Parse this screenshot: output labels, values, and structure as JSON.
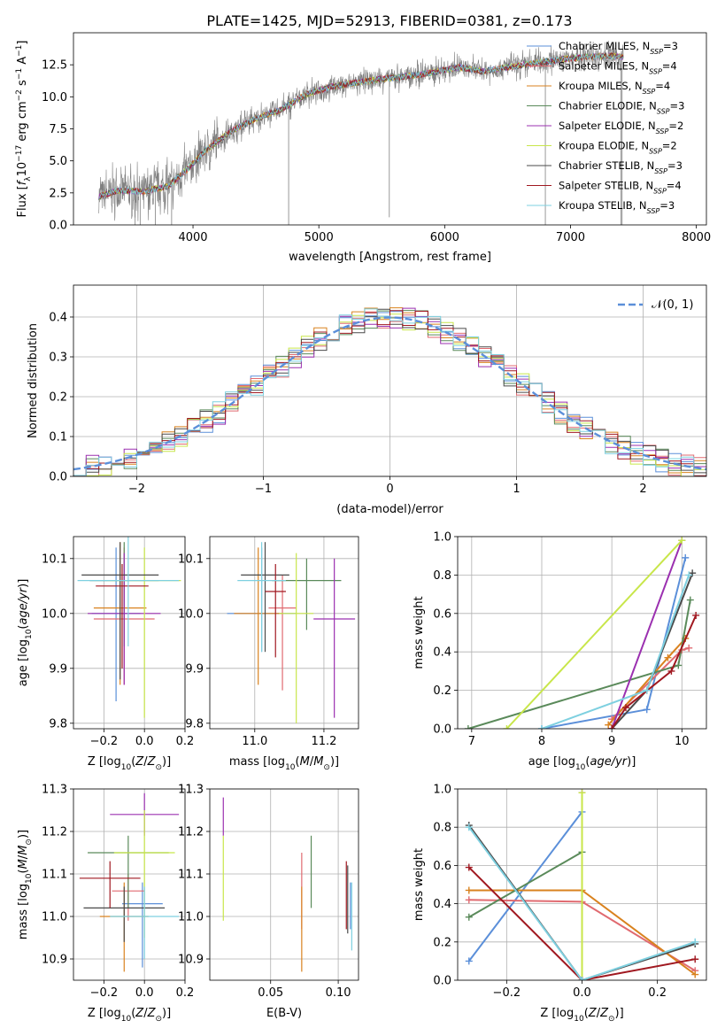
{
  "figure_title": "PLATE=1425, MJD=52913, FIBERID=0381, z=0.173",
  "colors": {
    "chabrier_miles": "#5b8fd9",
    "salpeter_miles": "#e06a70",
    "kroupa_miles": "#d9821f",
    "chabrier_elodie": "#5a8a5a",
    "salpeter_elodie": "#9b30b0",
    "kroupa_elodie": "#c8e64a",
    "chabrier_stelib": "#4a4a4a",
    "salpeter_stelib": "#a01820",
    "kroupa_stelib": "#7ed0e0",
    "data": "#808080",
    "normal": "#5b8fd9"
  },
  "chart_data": [
    {
      "id": "spectrum",
      "type": "line",
      "title": "PLATE=1425, MJD=52913, FIBERID=0381, z=0.173",
      "xlabel": "wavelength [Angstrom, rest frame]",
      "ylabel": "Flux [f_λ 10^-17 erg cm^-2 s^-1 A^-1]",
      "xlim": [
        3050,
        8080
      ],
      "ylim": [
        0,
        15
      ],
      "xticks": [
        4000,
        5000,
        6000,
        7000,
        8000
      ],
      "yticks": [
        0.0,
        2.5,
        5.0,
        7.5,
        10.0,
        12.5
      ],
      "legend": [
        "Chabrier MILES, N_SSP=3",
        "Salpeter MILES, N_SSP=4",
        "Kroupa MILES, N_SSP=4",
        "Chabrier ELODIE, N_SSP=3",
        "Salpeter ELODIE, N_SSP=2",
        "Kroupa ELODIE, N_SSP=2",
        "Chabrier STELIB, N_SSP=3",
        "Salpeter STELIB, N_SSP=4",
        "Kroupa STELIB, N_SSP=3"
      ],
      "legend_loc": "right",
      "continuum": [
        [
          3250,
          2.2
        ],
        [
          3400,
          2.7
        ],
        [
          3600,
          2.6
        ],
        [
          3800,
          3.0
        ],
        [
          3950,
          4.3
        ],
        [
          4100,
          5.8
        ],
        [
          4300,
          7.3
        ],
        [
          4500,
          8.3
        ],
        [
          4700,
          9.0
        ],
        [
          4900,
          10.2
        ],
        [
          5100,
          10.8
        ],
        [
          5300,
          11.1
        ],
        [
          5500,
          11.4
        ],
        [
          5700,
          11.6
        ],
        [
          5900,
          11.9
        ],
        [
          6100,
          12.3
        ],
        [
          6300,
          12.0
        ],
        [
          6500,
          12.3
        ],
        [
          6700,
          12.6
        ],
        [
          6900,
          12.9
        ],
        [
          7100,
          13.1
        ],
        [
          7300,
          13.2
        ],
        [
          7420,
          13.1
        ]
      ],
      "spikes": [
        [
          3540,
          -1
        ],
        [
          3580,
          -1
        ],
        [
          3700,
          -1
        ],
        [
          3830,
          -1
        ],
        [
          4760,
          -1
        ],
        [
          5560,
          0.6
        ],
        [
          6800,
          -1
        ],
        [
          7400,
          -1
        ],
        [
          7410,
          -1
        ]
      ]
    },
    {
      "id": "residuals",
      "type": "bar",
      "xlabel": "(data-model)/error",
      "ylabel": "Normed distribution",
      "xlim": [
        -2.5,
        2.5
      ],
      "ylim": [
        0,
        0.48
      ],
      "xticks": [
        -2,
        -1,
        0,
        1,
        2
      ],
      "yticks": [
        0.0,
        0.1,
        0.2,
        0.3,
        0.4
      ],
      "legend": [
        "𝒩(0, 1)"
      ],
      "legend_loc": "top-right",
      "bin_width": 0.1
    },
    {
      "id": "age-vs-z",
      "type": "scatter",
      "xlabel": "Z [log10(Z/Z_sun)]",
      "ylabel": "age [log10(age/yr)]",
      "xlim": [
        -0.35,
        0.2
      ],
      "ylim": [
        9.79,
        10.14
      ],
      "xticks": [
        -0.2,
        0.0,
        0.2
      ],
      "yticks": [
        9.8,
        9.9,
        10.0,
        10.1
      ],
      "points": [
        {
          "model": "chabrier_miles",
          "x": -0.14,
          "y": 10.0,
          "x_err": 0.12,
          "y_err_low": 0.16,
          "y_err_high": 0.12
        },
        {
          "model": "salpeter_miles",
          "x": -0.1,
          "y": 9.99,
          "x_err": 0.15,
          "y_err_low": 0.12,
          "y_err_high": 0.13
        },
        {
          "model": "kroupa_miles",
          "x": -0.12,
          "y": 10.01,
          "x_err": 0.13,
          "y_err_low": 0.14,
          "y_err_high": 0.12
        },
        {
          "model": "chabrier_elodie",
          "x": -0.1,
          "y": 10.06,
          "x_err": 0.17,
          "y_err_low": 0.12,
          "y_err_high": 0.07
        },
        {
          "model": "salpeter_elodie",
          "x": -0.1,
          "y": 10.0,
          "x_err": 0.18,
          "y_err_low": 0.13,
          "y_err_high": 0.11
        },
        {
          "model": "kroupa_elodie",
          "x": 0.0,
          "y": 10.06,
          "x_err": 0.18,
          "y_err_low": 0.25,
          "y_err_high": 0.06
        },
        {
          "model": "chabrier_stelib",
          "x": -0.12,
          "y": 10.07,
          "x_err": 0.19,
          "y_err_low": 0.19,
          "y_err_high": 0.06
        },
        {
          "model": "salpeter_stelib",
          "x": -0.11,
          "y": 10.05,
          "x_err": 0.13,
          "y_err_low": 0.15,
          "y_err_high": 0.04
        },
        {
          "model": "kroupa_stelib",
          "x": -0.08,
          "y": 10.06,
          "x_err": 0.25,
          "y_err_low": 0.12,
          "y_err_high": 0.08
        }
      ]
    },
    {
      "id": "age-vs-mass",
      "type": "scatter",
      "xlabel": "mass [log10(M/M_sun)]",
      "ylabel": "",
      "xlim": [
        10.87,
        11.3
      ],
      "ylim": [
        9.79,
        10.14
      ],
      "xticks": [
        11.0,
        11.2
      ],
      "yticks": [
        9.8,
        9.9,
        10.0,
        10.1
      ],
      "points": [
        {
          "model": "chabrier_miles",
          "x": 11.02,
          "y": 10.0,
          "x_err": 0.1,
          "y_err_low": 0.07,
          "y_err_high": 0.12
        },
        {
          "model": "salpeter_miles",
          "x": 11.08,
          "y": 10.01,
          "x_err": 0.04,
          "y_err_low": 0.15,
          "y_err_high": 0.06
        },
        {
          "model": "kroupa_miles",
          "x": 11.01,
          "y": 10.0,
          "x_err": 0.07,
          "y_err_low": 0.13,
          "y_err_high": 0.12
        },
        {
          "model": "chabrier_elodie",
          "x": 11.15,
          "y": 10.06,
          "x_err": 0.1,
          "y_err_low": 0.09,
          "y_err_high": 0.04
        },
        {
          "model": "salpeter_elodie",
          "x": 11.23,
          "y": 9.99,
          "x_err": 0.06,
          "y_err_low": 0.18,
          "y_err_high": 0.11
        },
        {
          "model": "kroupa_elodie",
          "x": 11.12,
          "y": 10.0,
          "x_err": 0.05,
          "y_err_low": 0.2,
          "y_err_high": 0.11
        },
        {
          "model": "chabrier_stelib",
          "x": 11.03,
          "y": 10.07,
          "x_err": 0.07,
          "y_err_low": 0.14,
          "y_err_high": 0.06
        },
        {
          "model": "salpeter_stelib",
          "x": 11.06,
          "y": 10.04,
          "x_err": 0.03,
          "y_err_low": 0.12,
          "y_err_high": 0.05
        },
        {
          "model": "kroupa_stelib",
          "x": 11.02,
          "y": 10.06,
          "x_err": 0.07,
          "y_err_low": 0.13,
          "y_err_high": 0.07
        }
      ]
    },
    {
      "id": "weight-vs-age",
      "type": "line",
      "xlabel": "age [log10(age/yr)]",
      "ylabel": "mass weight",
      "xlim": [
        6.8,
        10.35
      ],
      "ylim": [
        0,
        1
      ],
      "xticks": [
        7,
        8,
        9,
        10
      ],
      "yticks": [
        0.0,
        0.2,
        0.4,
        0.6,
        0.8,
        1.0
      ],
      "series": [
        {
          "model": "chabrier_miles",
          "x": [
            8.0,
            9.5,
            10.05
          ],
          "y": [
            0.0,
            0.1,
            0.89
          ]
        },
        {
          "model": "salpeter_miles",
          "x": [
            9.0,
            10.0,
            10.1
          ],
          "y": [
            0.05,
            0.41,
            0.42
          ]
        },
        {
          "model": "kroupa_miles",
          "x": [
            8.95,
            9.8,
            10.05
          ],
          "y": [
            0.02,
            0.37,
            0.47
          ]
        },
        {
          "model": "chabrier_elodie",
          "x": [
            6.95,
            9.95,
            10.12
          ],
          "y": [
            0.0,
            0.33,
            0.67
          ]
        },
        {
          "model": "salpeter_elodie",
          "x": [
            9.0,
            10.0
          ],
          "y": [
            0.0,
            0.98
          ]
        },
        {
          "model": "kroupa_elodie",
          "x": [
            7.5,
            10.0
          ],
          "y": [
            0.0,
            0.98
          ]
        },
        {
          "model": "chabrier_stelib",
          "x": [
            9.0,
            9.5,
            10.15
          ],
          "y": [
            0.0,
            0.2,
            0.81
          ]
        },
        {
          "model": "salpeter_stelib",
          "x": [
            9.0,
            9.2,
            9.85,
            10.2
          ],
          "y": [
            0.0,
            0.11,
            0.3,
            0.59
          ]
        },
        {
          "model": "kroupa_stelib",
          "x": [
            8.0,
            9.5,
            10.1
          ],
          "y": [
            0.0,
            0.2,
            0.8
          ]
        }
      ]
    },
    {
      "id": "mass-vs-z",
      "type": "scatter",
      "xlabel": "Z [log10(Z/Z_sun)]",
      "ylabel": "mass [log10(M/M_sun)]",
      "xlim": [
        -0.35,
        0.2
      ],
      "ylim": [
        10.85,
        11.3
      ],
      "xticks": [
        -0.2,
        0.0,
        0.2
      ],
      "yticks": [
        10.9,
        11.0,
        11.1,
        11.2,
        11.3
      ],
      "points": [
        {
          "model": "chabrier_miles",
          "x": -0.01,
          "y": 11.03,
          "x_err": 0.1,
          "y_err_low": 0.15,
          "y_err_high": 0.05
        },
        {
          "model": "salpeter_miles",
          "x": -0.08,
          "y": 11.06,
          "x_err": 0.08,
          "y_err_low": 0.07,
          "y_err_high": 0.04
        },
        {
          "model": "kroupa_miles",
          "x": -0.1,
          "y": 11.0,
          "x_err": 0.12,
          "y_err_low": 0.13,
          "y_err_high": 0.08
        },
        {
          "model": "chabrier_elodie",
          "x": -0.08,
          "y": 11.15,
          "x_err": 0.2,
          "y_err_low": 0.13,
          "y_err_high": 0.04
        },
        {
          "model": "salpeter_elodie",
          "x": 0.0,
          "y": 11.24,
          "x_err": 0.17,
          "y_err_low": 0.05,
          "y_err_high": 0.05
        },
        {
          "model": "kroupa_elodie",
          "x": 0.0,
          "y": 11.15,
          "x_err": 0.15,
          "y_err_low": 0.2,
          "y_err_high": 0.1
        },
        {
          "model": "chabrier_stelib",
          "x": -0.1,
          "y": 11.02,
          "x_err": 0.2,
          "y_err_low": 0.08,
          "y_err_high": 0.05
        },
        {
          "model": "salpeter_stelib",
          "x": -0.17,
          "y": 11.09,
          "x_err": 0.15,
          "y_err_low": 0.07,
          "y_err_high": 0.04
        },
        {
          "model": "kroupa_stelib",
          "x": 0.0,
          "y": 11.0,
          "x_err": 0.17,
          "y_err_low": 0.1,
          "y_err_high": 0.07
        }
      ]
    },
    {
      "id": "mass-vs-ebv",
      "type": "scatter",
      "xlabel": "E(B-V)",
      "ylabel": "",
      "xlim": [
        0.005,
        0.115
      ],
      "ylim": [
        10.85,
        11.3
      ],
      "xticks": [
        0.05,
        0.1
      ],
      "yticks": [
        10.9,
        11.0,
        11.1,
        11.2,
        11.3
      ],
      "points": [
        {
          "model": "chabrier_miles",
          "x": 0.109,
          "y": 11.0,
          "y_err_low": 0.03,
          "y_err_high": 0.08
        },
        {
          "model": "salpeter_miles",
          "x": 0.073,
          "y": 11.04,
          "y_err_low": 0.07,
          "y_err_high": 0.11
        },
        {
          "model": "kroupa_miles",
          "x": 0.073,
          "y": 10.97,
          "y_err_low": 0.1,
          "y_err_high": 0.1
        },
        {
          "model": "chabrier_elodie",
          "x": 0.08,
          "y": 11.1,
          "y_err_low": 0.08,
          "y_err_high": 0.09
        },
        {
          "model": "salpeter_elodie",
          "x": 0.015,
          "y": 11.24,
          "y_err_low": 0.05,
          "y_err_high": 0.04
        },
        {
          "model": "kroupa_elodie",
          "x": 0.015,
          "y": 11.1,
          "y_err_low": 0.11,
          "y_err_high": 0.09
        },
        {
          "model": "chabrier_stelib",
          "x": 0.107,
          "y": 11.04,
          "y_err_low": 0.08,
          "y_err_high": 0.08
        },
        {
          "model": "salpeter_stelib",
          "x": 0.106,
          "y": 11.07,
          "y_err_low": 0.1,
          "y_err_high": 0.06
        },
        {
          "model": "kroupa_stelib",
          "x": 0.11,
          "y": 11.02,
          "y_err_low": 0.1,
          "y_err_high": 0.06
        }
      ]
    },
    {
      "id": "weight-vs-z",
      "type": "line",
      "xlabel": "Z [log10(Z/Z_sun)]",
      "ylabel": "mass weight",
      "xlim": [
        -0.33,
        0.33
      ],
      "ylim": [
        0,
        1
      ],
      "xticks": [
        -0.2,
        0.0,
        0.2
      ],
      "yticks": [
        0.0,
        0.2,
        0.4,
        0.6,
        0.8,
        1.0
      ],
      "series": [
        {
          "model": "chabrier_miles",
          "x": [
            -0.3,
            0.0
          ],
          "y": [
            0.1,
            0.88
          ]
        },
        {
          "model": "salpeter_miles",
          "x": [
            -0.3,
            0.0,
            0.3
          ],
          "y": [
            0.42,
            0.41,
            0.05
          ]
        },
        {
          "model": "kroupa_miles",
          "x": [
            -0.3,
            0.0,
            0.3
          ],
          "y": [
            0.47,
            0.47,
            0.03
          ]
        },
        {
          "model": "chabrier_elodie",
          "x": [
            -0.3,
            0.0
          ],
          "y": [
            0.33,
            0.67
          ]
        },
        {
          "model": "salpeter_elodie",
          "x": [
            0.0
          ],
          "y": [
            0.98
          ]
        },
        {
          "model": "kroupa_elodie",
          "x": [
            0.0,
            0.0
          ],
          "y": [
            0.0,
            0.98
          ]
        },
        {
          "model": "chabrier_stelib",
          "x": [
            -0.3,
            0.0,
            0.3
          ],
          "y": [
            0.81,
            0.0,
            0.19
          ]
        },
        {
          "model": "salpeter_stelib",
          "x": [
            -0.3,
            0.0,
            0.3
          ],
          "y": [
            0.59,
            0.0,
            0.11
          ]
        },
        {
          "model": "kroupa_stelib",
          "x": [
            -0.3,
            0.0,
            0.3
          ],
          "y": [
            0.8,
            0.0,
            0.2
          ]
        }
      ]
    }
  ]
}
